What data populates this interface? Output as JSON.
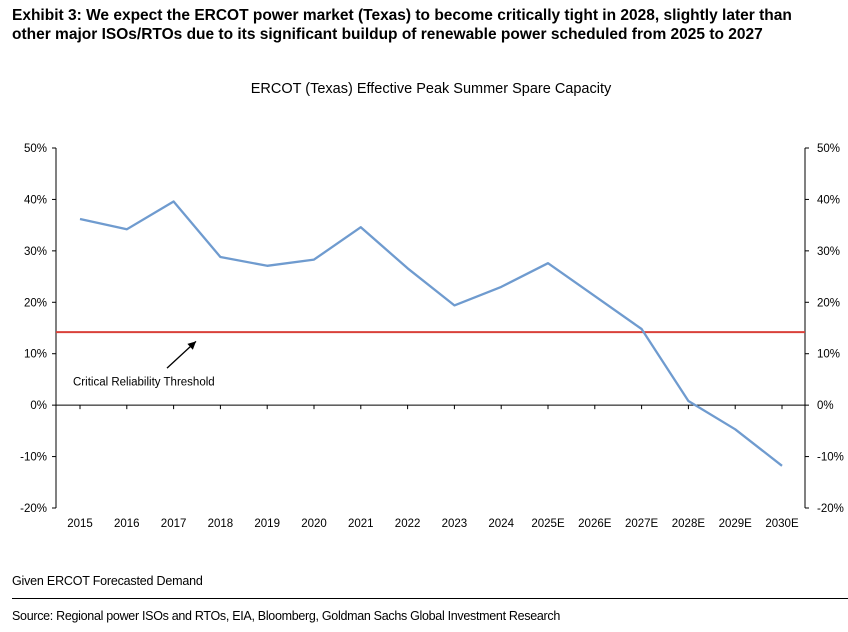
{
  "exhibit": {
    "title_line1": "Exhibit 3: We expect the ERCOT power market (Texas) to become critically tight in 2028, slightly later than",
    "title_line2": "other major ISOs/RTOs due to its significant buildup of renewable power scheduled from 2025 to 2027"
  },
  "chart_data": {
    "type": "line",
    "title": "ERCOT (Texas) Effective Peak Summer Spare Capacity",
    "categories": [
      "2015",
      "2016",
      "2017",
      "2018",
      "2019",
      "2020",
      "2021",
      "2022",
      "2023",
      "2024",
      "2025E",
      "2026E",
      "2027E",
      "2028E",
      "2029E",
      "2030E"
    ],
    "series": [
      {
        "name": "Effective Peak Summer Spare Capacity",
        "color": "#6f9bcf",
        "values": [
          36.2,
          34.2,
          39.6,
          28.8,
          27.1,
          28.3,
          34.6,
          26.6,
          19.4,
          23.0,
          27.6,
          21.2,
          14.8,
          0.8,
          -4.7,
          -11.8
        ]
      }
    ],
    "threshold": {
      "label": "Critical Reliability Threshold",
      "value": 14.2,
      "color": "#d9413a"
    },
    "ylim": [
      -20,
      50
    ],
    "yticks": [
      -20,
      -10,
      0,
      10,
      20,
      30,
      40,
      50
    ],
    "ytick_labels": [
      "-20%",
      "-10%",
      "0%",
      "10%",
      "20%",
      "30%",
      "40%",
      "50%"
    ],
    "xlabel": "",
    "ylabel": ""
  },
  "footer": {
    "note": "Given ERCOT Forecasted Demand",
    "source": "Source: Regional power ISOs and RTOs, EIA, Bloomberg, Goldman Sachs Global Investment Research"
  }
}
